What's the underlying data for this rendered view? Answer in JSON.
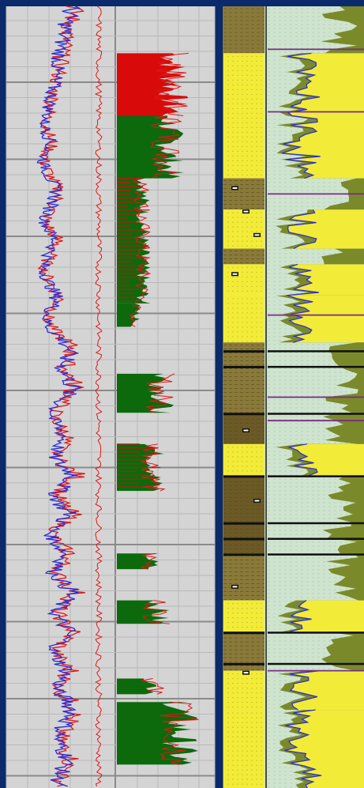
{
  "colors": {
    "frame": "#0b2a6b",
    "panel_bg": "#d4d4d4",
    "grid_major": "#8a8a8a",
    "grid_minor": "#b9b9b9",
    "curve_red": "#e01818",
    "curve_blue": "#2a2ad8",
    "fill_red": "#d80a0a",
    "fill_green": "#0c6a0c",
    "sand": "#f2ec38",
    "shale": "#8a7a3a",
    "dark_shale": "#6b5a26",
    "coal": "#101010",
    "silt": "#cfe4cf",
    "olive": "#7a8a2a",
    "marker": "#7a2a8a"
  },
  "chart_data": [
    {
      "type": "line",
      "track": "left-track-curves",
      "series": [
        {
          "color": "red",
          "values": [
            0.55,
            0.52,
            0.48,
            0.44,
            0.42,
            0.38,
            0.36,
            0.34,
            0.3,
            0.28,
            0.26,
            0.22,
            0.18,
            0.22,
            0.26,
            0.2,
            0.16,
            0.22,
            0.28,
            0.35,
            0.3,
            0.24,
            0.18,
            0.25,
            0.33,
            0.28,
            0.2,
            0.16,
            0.22,
            0.3,
            0.36,
            0.28,
            0.2,
            0.26,
            0.4,
            0.52,
            0.48,
            0.42,
            0.5,
            0.56,
            0.46,
            0.34,
            0.28,
            0.36,
            0.46,
            0.38,
            0.3,
            0.42,
            0.58,
            0.46,
            0.32,
            0.4,
            0.52,
            0.38,
            0.26,
            0.34,
            0.48,
            0.4,
            0.3,
            0.44,
            0.56,
            0.44,
            0.32,
            0.4,
            0.52,
            0.42,
            0.3,
            0.38,
            0.5,
            0.4,
            0.34,
            0.48,
            0.56,
            0.5,
            0.42,
            0.36,
            0.42,
            0.5,
            0.44,
            0.36,
            0.4
          ]
        },
        {
          "color": "blue",
          "values": [
            0.5,
            0.47,
            0.44,
            0.4,
            0.38,
            0.35,
            0.33,
            0.3,
            0.28,
            0.25,
            0.23,
            0.2,
            0.16,
            0.2,
            0.24,
            0.18,
            0.14,
            0.2,
            0.25,
            0.32,
            0.27,
            0.21,
            0.16,
            0.22,
            0.3,
            0.25,
            0.18,
            0.14,
            0.2,
            0.27,
            0.33,
            0.25,
            0.18,
            0.23,
            0.37,
            0.48,
            0.44,
            0.38,
            0.46,
            0.52,
            0.42,
            0.31,
            0.25,
            0.33,
            0.42,
            0.35,
            0.27,
            0.38,
            0.54,
            0.42,
            0.29,
            0.36,
            0.48,
            0.35,
            0.23,
            0.31,
            0.44,
            0.37,
            0.27,
            0.4,
            0.52,
            0.4,
            0.29,
            0.37,
            0.48,
            0.38,
            0.27,
            0.35,
            0.46,
            0.37,
            0.31,
            0.44,
            0.52,
            0.46,
            0.38,
            0.33,
            0.38,
            0.46,
            0.4,
            0.33,
            0.37
          ]
        }
      ]
    },
    {
      "type": "area",
      "track": "left-track-fills",
      "zones": [
        {
          "top": 0.06,
          "bottom": 0.14,
          "color": "red",
          "extent": 0.75
        },
        {
          "top": 0.14,
          "bottom": 0.22,
          "color": "green",
          "extent": 0.7
        },
        {
          "top": 0.22,
          "bottom": 0.38,
          "color": "mixed",
          "extent": 0.35
        },
        {
          "top": 0.38,
          "bottom": 0.41,
          "color": "green",
          "extent": 0.25
        },
        {
          "top": 0.47,
          "bottom": 0.52,
          "color": "green",
          "extent": 0.6
        },
        {
          "top": 0.56,
          "bottom": 0.62,
          "color": "mixed",
          "extent": 0.5
        },
        {
          "top": 0.7,
          "bottom": 0.72,
          "color": "green",
          "extent": 0.45
        },
        {
          "top": 0.76,
          "bottom": 0.79,
          "color": "green",
          "extent": 0.55
        },
        {
          "top": 0.86,
          "bottom": 0.88,
          "color": "green",
          "extent": 0.5
        },
        {
          "top": 0.89,
          "bottom": 0.97,
          "color": "green",
          "extent": 0.85
        }
      ]
    },
    {
      "type": "area",
      "track": "right-track-lithology",
      "beds": [
        {
          "top": 0.0,
          "bottom": 0.06,
          "lith": "shale"
        },
        {
          "top": 0.06,
          "bottom": 0.22,
          "lith": "sand"
        },
        {
          "top": 0.22,
          "bottom": 0.26,
          "lith": "shale"
        },
        {
          "top": 0.26,
          "bottom": 0.31,
          "lith": "sand"
        },
        {
          "top": 0.31,
          "bottom": 0.33,
          "lith": "shale"
        },
        {
          "top": 0.33,
          "bottom": 0.37,
          "lith": "sand"
        },
        {
          "top": 0.37,
          "bottom": 0.43,
          "lith": "sand"
        },
        {
          "top": 0.43,
          "bottom": 0.52,
          "lith": "shale"
        },
        {
          "top": 0.52,
          "bottom": 0.56,
          "lith": "dark_shale"
        },
        {
          "top": 0.56,
          "bottom": 0.6,
          "lith": "sand"
        },
        {
          "top": 0.6,
          "bottom": 0.7,
          "lith": "dark_shale"
        },
        {
          "top": 0.7,
          "bottom": 0.76,
          "lith": "shale"
        },
        {
          "top": 0.76,
          "bottom": 0.8,
          "lith": "sand"
        },
        {
          "top": 0.8,
          "bottom": 0.85,
          "lith": "shale"
        },
        {
          "top": 0.85,
          "bottom": 0.9,
          "lith": "sand"
        },
        {
          "top": 0.9,
          "bottom": 1.0,
          "lith": "sand"
        }
      ],
      "coal_seams": [
        0.44,
        0.46,
        0.52,
        0.6,
        0.66,
        0.68,
        0.7,
        0.8,
        0.84
      ]
    }
  ]
}
